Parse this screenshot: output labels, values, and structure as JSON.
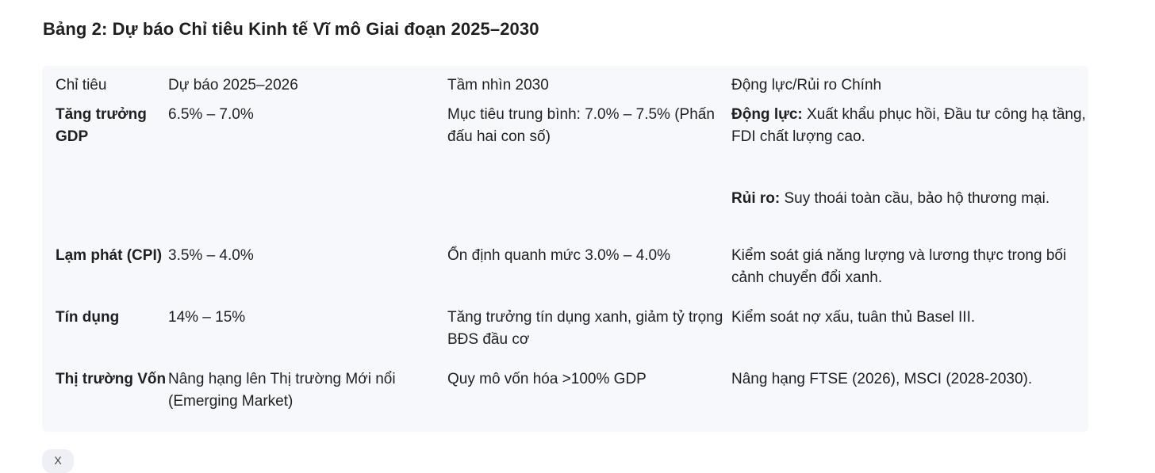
{
  "title": "Bảng 2: Dự báo Chỉ tiêu Kinh tế Vĩ mô Giai đoạn 2025–2030",
  "table": {
    "headers": [
      "Chỉ tiêu",
      "Dự báo 2025–2026",
      "Tầm nhìn 2030",
      "Động lực/Rủi ro Chính"
    ],
    "rows": [
      {
        "indicator": "Tăng trưởng GDP",
        "forecast": "6.5% – 7.0%",
        "vision": "Mục tiêu trung bình: 7.0% – 7.5% (Phấn đấu hai con số)",
        "driver_label": "Động lực:",
        "driver_text": " Xuất khẩu phục hồi, Đầu tư công hạ tầng, FDI chất lượng cao.",
        "risk_label": "Rủi ro:",
        "risk_text": " Suy thoái toàn cầu, bảo hộ thương mại."
      },
      {
        "indicator": "Lạm phát (CPI)",
        "forecast": "3.5% – 4.0%",
        "vision": "Ổn định quanh mức 3.0% – 4.0%",
        "driver": "Kiểm soát giá năng lượng và lương thực trong bối cảnh chuyển đổi xanh."
      },
      {
        "indicator": "Tín dụng",
        "forecast": "14% – 15%",
        "vision": "Tăng trưởng tín dụng xanh, giảm tỷ trọng BĐS đầu cơ",
        "driver": "Kiểm soát nợ xấu, tuân thủ Basel III."
      },
      {
        "indicator": "Thị trường Vốn",
        "forecast": "Nâng hạng lên Thị trường Mới nổi (Emerging Market)",
        "vision": "Quy mô vốn hóa >100% GDP",
        "driver": "Nâng hạng FTSE (2026), MSCI (2028-2030)."
      }
    ]
  },
  "footer_chip": "X"
}
